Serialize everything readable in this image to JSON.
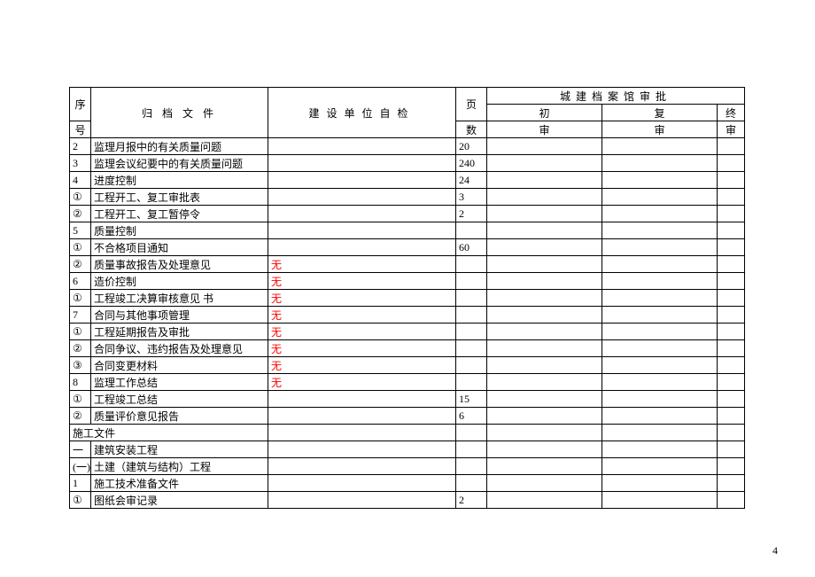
{
  "header": {
    "seq_l1": "序",
    "seq_l2": "号",
    "file": "归 档 文 件",
    "check": "建设单位自检",
    "pages_l1": "页",
    "pages_l2": "数",
    "review_top": "城建档案馆审批",
    "r1_l1": "初",
    "r1_l2": "审",
    "r2_l1": "复",
    "r2_l2": "审",
    "r3_l1": "终",
    "r3_l2": "审"
  },
  "rows": [
    {
      "seq": "2",
      "file": "监理月报中的有关质量问题",
      "check": "",
      "pages": "20",
      "span": false
    },
    {
      "seq": "3",
      "file": "监理会议纪要中的有关质量问题",
      "check": "",
      "pages": "240",
      "span": false
    },
    {
      "seq": "4",
      "file": "进度控制",
      "check": "",
      "pages": "24",
      "span": false
    },
    {
      "seq": "①",
      "file": "工程开工、复工审批表",
      "check": "",
      "pages": "3",
      "span": false
    },
    {
      "seq": "②",
      "file": "工程开工、复工暂停令",
      "check": "",
      "pages": "2",
      "span": false
    },
    {
      "seq": "5",
      "file": "质量控制",
      "check": "",
      "pages": "",
      "span": false
    },
    {
      "seq": "①",
      "file": "不合格项目通知",
      "check": "",
      "pages": "60",
      "span": false
    },
    {
      "seq": "②",
      "file": "质量事故报告及处理意见",
      "check": "无",
      "red": true,
      "pages": "",
      "span": false
    },
    {
      "seq": "6",
      "file": "造价控制",
      "check": "无",
      "red": true,
      "pages": "",
      "span": false
    },
    {
      "seq": "①",
      "file": "工程竣工决算审核意见 书",
      "check": "无",
      "red": true,
      "pages": "",
      "span": false
    },
    {
      "seq": "7",
      "file": "合同与其他事项管理",
      "check": "无",
      "red": true,
      "pages": "",
      "span": false
    },
    {
      "seq": "①",
      "file": "工程延期报告及审批",
      "check": "无",
      "red": true,
      "pages": "",
      "span": false
    },
    {
      "seq": "②",
      "file": "合同争议、违约报告及处理意见",
      "check": "无",
      "red": true,
      "pages": "",
      "span": false
    },
    {
      "seq": "③",
      "file": "合同变更材料",
      "check": "无",
      "red": true,
      "pages": "",
      "span": false
    },
    {
      "seq": "8",
      "file": "监理工作总结",
      "check": "无",
      "red": true,
      "pages": "",
      "span": false
    },
    {
      "seq": "①",
      "file": "工程竣工总结",
      "check": "",
      "pages": "15",
      "span": false
    },
    {
      "seq": "②",
      "file": "质量评价意见报告",
      "check": "",
      "pages": "6",
      "span": false
    },
    {
      "seq": "",
      "file": "施工文件",
      "check": "",
      "pages": "",
      "span": true
    },
    {
      "seq": "一",
      "file": "建筑安装工程",
      "check": "",
      "pages": "",
      "span": false
    },
    {
      "seq": "(一)",
      "file": "土建（建筑与结构）工程",
      "check": "",
      "pages": "",
      "span": false
    },
    {
      "seq": "1",
      "file": "施工技术准备文件",
      "check": "",
      "pages": "",
      "span": false
    },
    {
      "seq": "①",
      "file": "图纸会审记录",
      "check": "",
      "pages": "2",
      "span": false
    }
  ],
  "page_number": "4"
}
